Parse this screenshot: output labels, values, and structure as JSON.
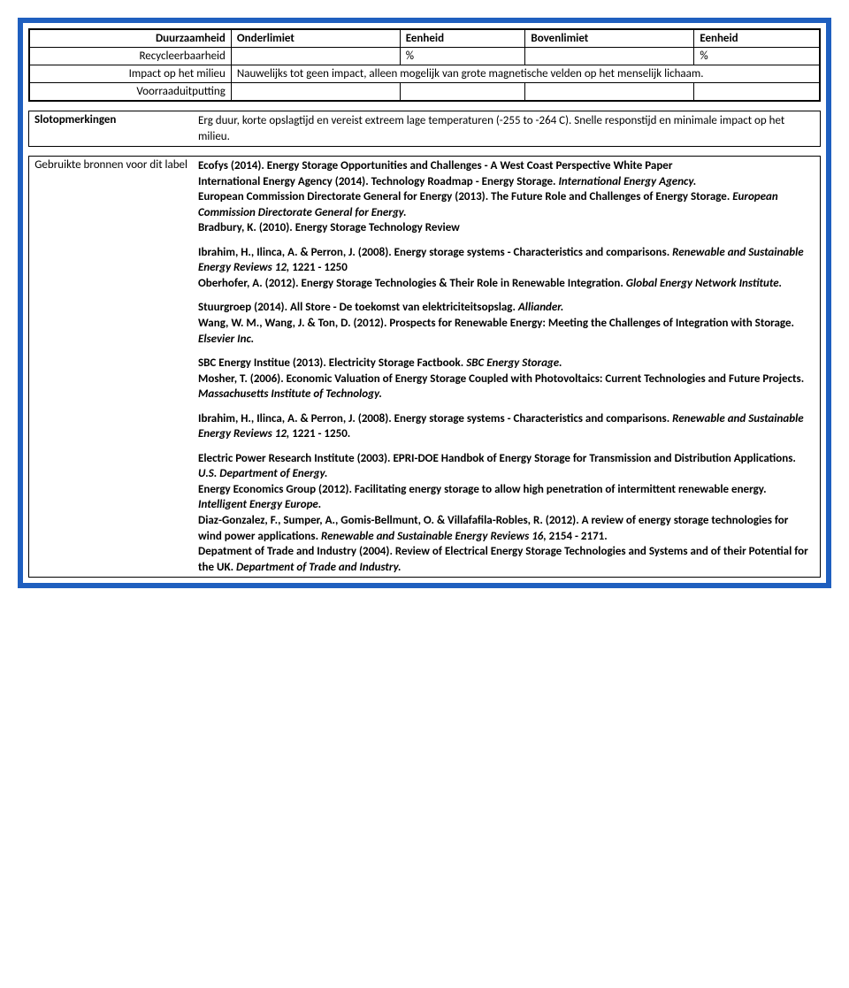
{
  "top_table": {
    "header": [
      "Duurzaamheid",
      "Onderlimiet",
      "Eenheid",
      "Bovenlimiet",
      "Eenheid"
    ],
    "rows": [
      {
        "label": "Recycleerbaarheid",
        "c1": "",
        "c2": "%",
        "c3": "",
        "c4": "%"
      },
      {
        "label": "Impact op het milieu",
        "merged": "Nauwelijks tot geen impact, alleen mogelijk van grote magnetische velden op het menselijk lichaam."
      },
      {
        "label": "Voorraaduitputting",
        "c1": "",
        "c2": "",
        "c3": "",
        "c4": ""
      }
    ]
  },
  "remarks": {
    "label": "Slotopmerkingen",
    "text": "Erg duur, korte opslagtijd en vereist extreem lage temperaturen (-255 to -264 C). Snelle responstijd en minimale impact op het milieu."
  },
  "sources": {
    "label": "Gebruikte bronnen voor dit label",
    "p1a": "Ecofys (2014). Energy Storage Opportunities and Challenges - A West Coast Perspective White Paper",
    "p1b": "International Energy Agency (2014). Technology Roadmap - Energy Storage. ",
    "p1b_it": "International Energy Agency.",
    "p1c": "European Commission Directorate General for Energy (2013). The Future Role and Challenges of Energy Storage. ",
    "p1c_it": "European Commission Directorate General for Energy.",
    "p1d": "Bradbury, K. (2010). Energy Storage Technology Review",
    "p2a": "Ibrahim, H., Ilinca, A. & Perron, J. (2008). Energy storage systems - Characteristics and comparisons. ",
    "p2a_it": "Renewable and Sustainable Energy Reviews 12, ",
    "p2a_end": "1221 - 1250",
    "p2b": "Oberhofer, A. (2012). Energy Storage Technologies & Their Role in Renewable Integration. ",
    "p2b_it": "Global Energy Network Institute.",
    "p3a": "Stuurgroep (2014). All Store - De toekomst van elektriciteitsopslag. ",
    "p3a_it": "Alliander.",
    "p3b": "Wang, W. M., Wang, J. & Ton, D. (2012). Prospects for Renewable Energy: Meeting the Challenges of Integration with Storage. ",
    "p3b_it": "Elsevier Inc.",
    "p4a": "SBC Energy Institue (2013). Electricity Storage Factbook. ",
    "p4a_it": "SBC Energy Storage.",
    "p4b": "Mosher, T. (2006). Economic Valuation of Energy Storage Coupled with Photovoltaics: Current Technologies and Future Projects. ",
    "p4b_it": "Massachusetts Institute of Technology.",
    "p5a": "Ibrahim, H., Ilinca, A. & Perron, J. (2008). Energy storage systems - Characteristics and comparisons. ",
    "p5a_it": "Renewable and Sustainable Energy Reviews 12, ",
    "p5a_end": "1221 - 1250.",
    "p6a": "Electric Power Research Institute (2003). EPRI-DOE Handbok of Energy Storage for Transmission and Distribution Applications. ",
    "p6a_it": "U.S. Department of Energy.",
    "p6b": "Energy Economics Group (2012). Facilitating energy storage to allow high penetration of intermittent renewable energy. ",
    "p6b_it": "Intelligent Energy Europe.",
    "p6c": "Diaz-Gonzalez, F., Sumper, A., Gomis-Bellmunt, O. & Villafafila-Robles, R. (2012). A review of energy storage technologies for wind power applications. ",
    "p6c_it": "Renewable and Sustainable Energy Reviews 16, ",
    "p6c_end": "2154 - 2171.",
    "p6d": "Depatment of Trade and Industry (2004). Review of Electrical Energy Storage Technologies and Systems and of their Potential for the UK. ",
    "p6d_it": "Department of Trade and Industry."
  }
}
